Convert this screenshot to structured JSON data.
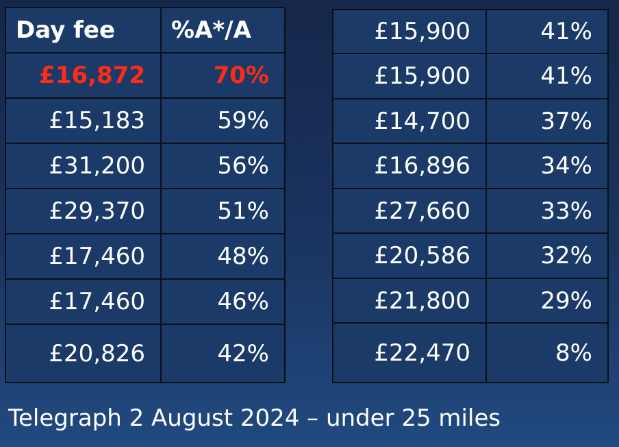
{
  "left_table": {
    "header": [
      "Day fee",
      "%A*/A"
    ],
    "rows": [
      [
        "£16,872",
        "70%"
      ],
      [
        "£15,183",
        "59%"
      ],
      [
        "£31,200",
        "56%"
      ],
      [
        "£29,370",
        "51%"
      ],
      [
        "£17,460",
        "48%"
      ],
      [
        "£17,460",
        "46%"
      ],
      [
        "£20,826",
        "42%"
      ]
    ]
  },
  "right_table": {
    "rows": [
      [
        "£15,900",
        "41%"
      ],
      [
        "£15,900",
        "41%"
      ],
      [
        "£14,700",
        "37%"
      ],
      [
        "£16,896",
        "34%"
      ],
      [
        "£27,660",
        "33%"
      ],
      [
        "£20,586",
        "32%"
      ],
      [
        "£21,800",
        "29%"
      ],
      [
        "£22,470",
        "8%"
      ]
    ]
  },
  "caption": "Telegraph 2 August 2024 – under 25 miles"
}
